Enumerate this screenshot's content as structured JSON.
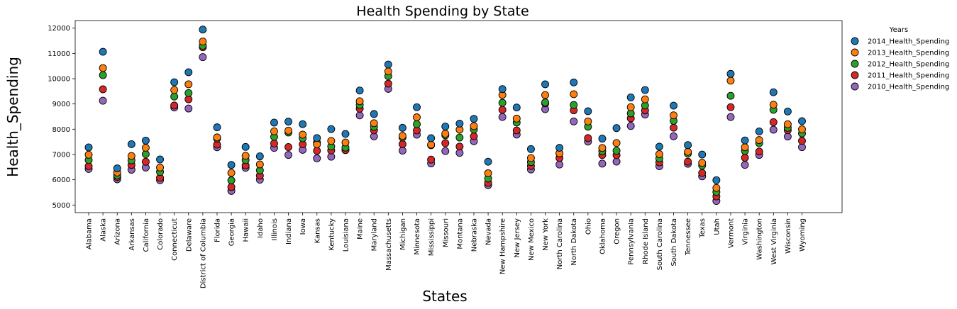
{
  "chart_data": {
    "type": "scatter",
    "title": "Health Spending by State",
    "xlabel": "States",
    "ylabel": "Health_Spending",
    "ylim": [
      4700,
      12300
    ],
    "yticks": [
      5000,
      6000,
      7000,
      8000,
      9000,
      10000,
      11000,
      12000
    ],
    "grid": false,
    "legend": {
      "title": "Years",
      "placement": "outside-top-right"
    },
    "categories": [
      "Alabama",
      "Alaska",
      "Arizona",
      "Arkansas",
      "California",
      "Colorado",
      "Connecticut",
      "Delaware",
      "District of Columbia",
      "Florida",
      "Georgia",
      "Hawaii",
      "Idaho",
      "Illinois",
      "Indiana",
      "Iowa",
      "Kansas",
      "Kentucky",
      "Louisiana",
      "Maine",
      "Maryland",
      "Massachusetts",
      "Michigan",
      "Minnesota",
      "Mississippi",
      "Missouri",
      "Montana",
      "Nebraska",
      "Nevada",
      "New Hampshire",
      "New Jersey",
      "New Mexico",
      "New York",
      "North Carolina",
      "North Dakota",
      "Ohio",
      "Oklahoma",
      "Oregon",
      "Pennsylvania",
      "Rhode Island",
      "South Carolina",
      "South Dakota",
      "Tennessee",
      "Texas",
      "Utah",
      "Vermont",
      "Virginia",
      "Washington",
      "West Virginia",
      "Wisconsin",
      "Wyoming"
    ],
    "series": [
      {
        "name": "2014_Health_Spending",
        "color": "#1f77b4",
        "values": [
          7281,
          11064,
          6452,
          7408,
          7549,
          6804,
          9859,
          10254,
          11944,
          8076,
          6587,
          7299,
          6927,
          8262,
          8300,
          8200,
          7651,
          8004,
          7815,
          9531,
          8602,
          10559,
          8055,
          8871,
          7646,
          8107,
          8221,
          8412,
          6714,
          9589,
          8859,
          7214,
          9778,
          7264,
          9851,
          8712,
          7627,
          8044,
          9258,
          9551,
          7311,
          8933,
          7372,
          6998,
          5982,
          10190,
          7556,
          7913,
          9462,
          8702,
          8320
        ]
      },
      {
        "name": "2013_Health_Spending",
        "color": "#ff7f0e",
        "values": [
          6990,
          10420,
          6287,
          6942,
          7268,
          6485,
          9550,
          9778,
          11470,
          7676,
          6272,
          6949,
          6608,
          7916,
          7943,
          7788,
          7404,
          7537,
          7475,
          9108,
          8239,
          10290,
          7736,
          8472,
          7389,
          7823,
          7985,
          8122,
          6259,
          9357,
          8422,
          6859,
          9353,
          7049,
          9386,
          8310,
          7258,
          7455,
          8872,
          9182,
          7015,
          8551,
          7106,
          6670,
          5676,
          9922,
          7287,
          7571,
          8971,
          8196,
          7995
        ]
      },
      {
        "name": "2012_Health_Spending",
        "color": "#2ca02c",
        "values": [
          6780,
          10140,
          6172,
          6768,
          7015,
          6313,
          9293,
          9432,
          11305,
          7631,
          5976,
          6778,
          6372,
          7700,
          7870,
          7640,
          7472,
          7318,
          7273,
          8960,
          8094,
          10100,
          7673,
          8199,
          7366,
          7760,
          7670,
          7989,
          6046,
          9047,
          8263,
          6699,
          9060,
          7044,
          8960,
          8100,
          7127,
          7150,
          8629,
          8940,
          6842,
          8331,
          7034,
          6560,
          5518,
          9322,
          7141,
          7447,
          8770,
          8057,
          7832
        ]
      },
      {
        "name": "2011_Health_Spending",
        "color": "#d62728",
        "values": [
          6538,
          9580,
          6102,
          6586,
          6713,
          6078,
          8938,
          9184,
          11243,
          7393,
          5713,
          6569,
          6161,
          7435,
          7295,
          7404,
          7147,
          7159,
          7176,
          8811,
          7955,
          9803,
          7410,
          7953,
          6797,
          7449,
          7314,
          7720,
          5877,
          8768,
          7951,
          6543,
          9020,
          6861,
          8750,
          7648,
          6979,
          6973,
          8430,
          8743,
          6688,
          8060,
          6716,
          6269,
          5341,
          8872,
          6873,
          7117,
          8280,
          7961,
          7540
        ]
      },
      {
        "name": "2010_Health_Spending",
        "color": "#9467bd",
        "values": [
          6427,
          9128,
          6018,
          6397,
          6484,
          5982,
          8859,
          8820,
          10853,
          7287,
          5558,
          6474,
          6003,
          7263,
          6982,
          7184,
          6848,
          6913,
          7176,
          8547,
          7717,
          9597,
          7152,
          7784,
          6646,
          7134,
          7064,
          7525,
          5786,
          8484,
          7788,
          6406,
          8793,
          6602,
          8308,
          7510,
          6639,
          6719,
          8129,
          8579,
          6537,
          7722,
          6632,
          6135,
          5163,
          8483,
          6589,
          6983,
          7982,
          7710,
          7291
        ]
      }
    ]
  }
}
